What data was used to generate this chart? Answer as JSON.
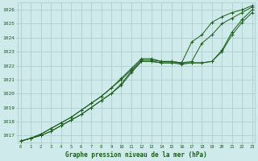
{
  "title": "Graphe pression niveau de la mer (hPa)",
  "hours": [
    0,
    1,
    2,
    3,
    4,
    5,
    6,
    7,
    8,
    9,
    10,
    11,
    12,
    13,
    14,
    15,
    16,
    17,
    18,
    19,
    20,
    21,
    22,
    23
  ],
  "ylim": [
    1016.5,
    1026.5
  ],
  "yticks": [
    1017,
    1018,
    1019,
    1020,
    1021,
    1022,
    1023,
    1024,
    1025,
    1026
  ],
  "xlim": [
    -0.3,
    23.3
  ],
  "background_color": "#ceeaea",
  "grid_color": "#aac8c8",
  "line_color": "#1a5c1a",
  "line1": [
    1016.6,
    1016.8,
    1017.0,
    1017.3,
    1017.7,
    1018.1,
    1018.5,
    1019.0,
    1019.5,
    1020.0,
    1020.6,
    1021.5,
    1022.3,
    1022.3,
    1022.2,
    1022.2,
    1022.2,
    1022.2,
    1022.2,
    1022.3,
    1023.1,
    1024.4,
    1025.3,
    1026.0
  ],
  "line2": [
    1016.6,
    1016.8,
    1017.0,
    1017.3,
    1017.7,
    1018.1,
    1018.5,
    1019.0,
    1019.5,
    1020.0,
    1020.7,
    1021.6,
    1022.3,
    1022.3,
    1022.2,
    1022.2,
    1022.1,
    1022.2,
    1022.2,
    1022.3,
    1023.0,
    1024.2,
    1025.1,
    1025.8
  ],
  "line3": [
    1016.6,
    1016.8,
    1017.1,
    1017.5,
    1017.9,
    1018.3,
    1018.8,
    1019.3,
    1019.8,
    1020.4,
    1021.0,
    1021.7,
    1022.4,
    1022.4,
    1022.3,
    1022.3,
    1022.2,
    1022.3,
    1023.6,
    1024.2,
    1025.0,
    1025.4,
    1025.8,
    1026.2
  ],
  "line4": [
    1016.6,
    1016.8,
    1017.1,
    1017.5,
    1017.9,
    1018.3,
    1018.8,
    1019.3,
    1019.8,
    1020.4,
    1021.1,
    1021.8,
    1022.5,
    1022.5,
    1022.3,
    1022.3,
    1022.2,
    1023.7,
    1024.2,
    1025.1,
    1025.5,
    1025.8,
    1026.0,
    1026.3
  ]
}
